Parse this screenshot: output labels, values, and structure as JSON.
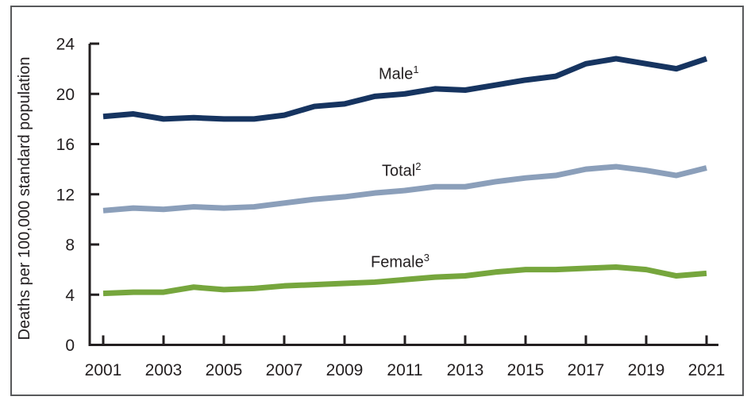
{
  "figure": {
    "y_axis_title": "Deaths per 100,000 standard population"
  },
  "series_labels": [
    {
      "text": "Male",
      "sup": "1"
    },
    {
      "text": "Total",
      "sup": "2"
    },
    {
      "text": "Female",
      "sup": "3"
    }
  ],
  "colors": {
    "male": "#163460",
    "total": "#8b9fba",
    "female": "#76a63d",
    "axis": "#231f20",
    "frame": "#58595b"
  },
  "chart_data": {
    "type": "line",
    "x": [
      2001,
      2002,
      2003,
      2004,
      2005,
      2006,
      2007,
      2008,
      2009,
      2010,
      2011,
      2012,
      2013,
      2014,
      2015,
      2016,
      2017,
      2018,
      2019,
      2020,
      2021
    ],
    "series": [
      {
        "name": "Male",
        "color_key": "male",
        "values": [
          18.2,
          18.4,
          18.0,
          18.1,
          18.0,
          18.0,
          18.3,
          19.0,
          19.2,
          19.8,
          20.0,
          20.4,
          20.3,
          20.7,
          21.1,
          21.4,
          22.4,
          22.8,
          22.4,
          22.0,
          22.8
        ]
      },
      {
        "name": "Total",
        "color_key": "total",
        "values": [
          10.7,
          10.9,
          10.8,
          11.0,
          10.9,
          11.0,
          11.3,
          11.6,
          11.8,
          12.1,
          12.3,
          12.6,
          12.6,
          13.0,
          13.3,
          13.5,
          14.0,
          14.2,
          13.9,
          13.5,
          14.1
        ]
      },
      {
        "name": "Female",
        "color_key": "female",
        "values": [
          4.1,
          4.2,
          4.2,
          4.6,
          4.4,
          4.5,
          4.7,
          4.8,
          4.9,
          5.0,
          5.2,
          5.4,
          5.5,
          5.8,
          6.0,
          6.0,
          6.1,
          6.2,
          6.0,
          5.5,
          5.7
        ]
      }
    ],
    "title": "",
    "xlabel": "",
    "ylabel": "Deaths per 100,000 standard population",
    "ylim": [
      0,
      24
    ],
    "yticks": [
      0,
      4,
      8,
      12,
      16,
      20,
      24
    ],
    "xtick_labels": [
      "2001",
      "2003",
      "2005",
      "2007",
      "2009",
      "2011",
      "2013",
      "2015",
      "2017",
      "2019",
      "2021"
    ],
    "grid": false,
    "legend_position": "inline-labels"
  }
}
